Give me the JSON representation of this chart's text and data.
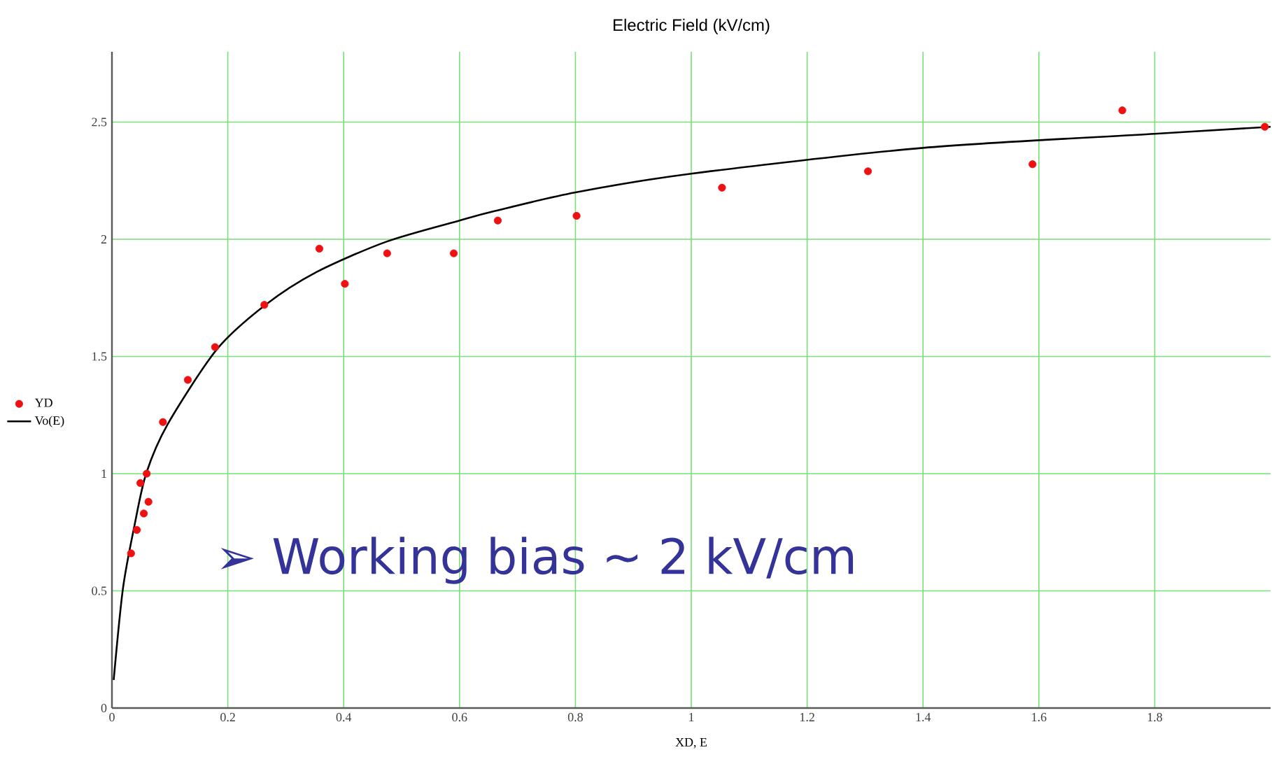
{
  "chart_data": {
    "type": "scatter",
    "title": "Electric Field (kV/cm)",
    "xlabel": "XD, E",
    "xlim": [
      0,
      2
    ],
    "ylim": [
      0,
      2.8
    ],
    "xticks": [
      0,
      0.2,
      0.4,
      0.6,
      0.8,
      1,
      1.2,
      1.4,
      1.6,
      1.8
    ],
    "yticks": [
      0,
      0.5,
      1,
      1.5,
      2,
      2.5
    ],
    "grid": true,
    "legend": "left",
    "series": [
      {
        "name": "YD",
        "type": "scatter",
        "marker": "circle",
        "color": "#ee1111",
        "x": [
          0.033,
          0.043,
          0.055,
          0.063,
          0.049,
          0.06,
          0.088,
          0.131,
          0.178,
          0.263,
          0.358,
          0.402,
          0.475,
          0.59,
          0.666,
          0.802,
          1.053,
          1.305,
          1.589,
          1.744,
          1.99
        ],
        "values": [
          0.66,
          0.76,
          0.83,
          0.88,
          0.96,
          1.0,
          1.22,
          1.4,
          1.54,
          1.72,
          1.96,
          1.81,
          1.94,
          1.94,
          2.08,
          2.1,
          2.22,
          2.29,
          2.32,
          2.55,
          2.48
        ]
      },
      {
        "name": "Vo(E)",
        "type": "line",
        "marker": "none",
        "line_style": "solid",
        "color": "#000000",
        "x": [
          0.003,
          0.019,
          0.039,
          0.059,
          0.096,
          0.181,
          0.265,
          0.353,
          0.474,
          0.6,
          0.66,
          0.8,
          1.0,
          1.4,
          1.8,
          2.0
        ],
        "values": [
          0.12,
          0.51,
          0.78,
          1.0,
          1.21,
          1.53,
          1.72,
          1.86,
          1.99,
          2.08,
          2.12,
          2.2,
          2.28,
          2.39,
          2.45,
          2.48
        ]
      }
    ],
    "annotations": [
      "➢  Working bias ~ 2 kV/cm"
    ]
  }
}
